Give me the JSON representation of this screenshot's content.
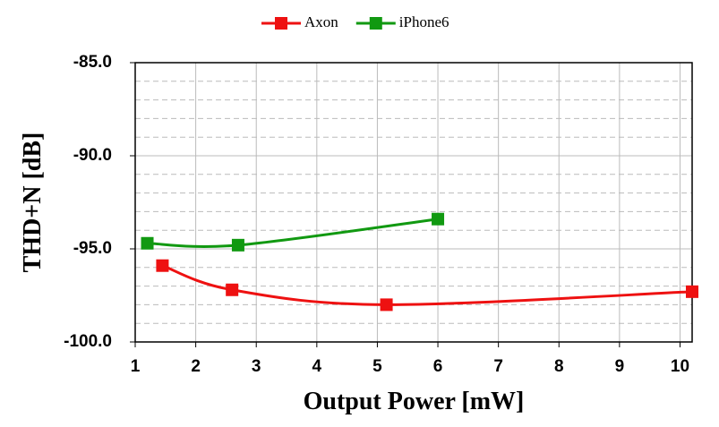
{
  "chart_data": {
    "type": "line",
    "xlabel": "Output Power [mW]",
    "ylabel": "THD+N [dB]",
    "xlim": [
      1,
      10.2
    ],
    "xticks": [
      1,
      2,
      3,
      4,
      5,
      6,
      7,
      8,
      9,
      10
    ],
    "ylim": [
      -100,
      -85
    ],
    "yticks": [
      {
        "value": -100,
        "label": "-100.0"
      },
      {
        "value": -95,
        "label": "-95.0"
      },
      {
        "value": -90,
        "label": "-90.0"
      },
      {
        "value": -85,
        "label": "-85.0"
      }
    ],
    "yminorticks": [
      -99,
      -98,
      -97,
      -96,
      -94,
      -93,
      -92,
      -91,
      -89,
      -88,
      -87,
      -86
    ],
    "grid": true,
    "legend": "top",
    "series": [
      {
        "name": "Axon",
        "color": "#ee1111",
        "x": [
          1.45,
          2.6,
          5.15,
          10.2
        ],
        "values": [
          -95.9,
          -97.2,
          -98.0,
          -97.3
        ]
      },
      {
        "name": "iPhone6",
        "color": "#119911",
        "x": [
          1.2,
          2.7,
          6.0
        ],
        "values": [
          -94.7,
          -94.8,
          -93.4
        ]
      }
    ]
  }
}
